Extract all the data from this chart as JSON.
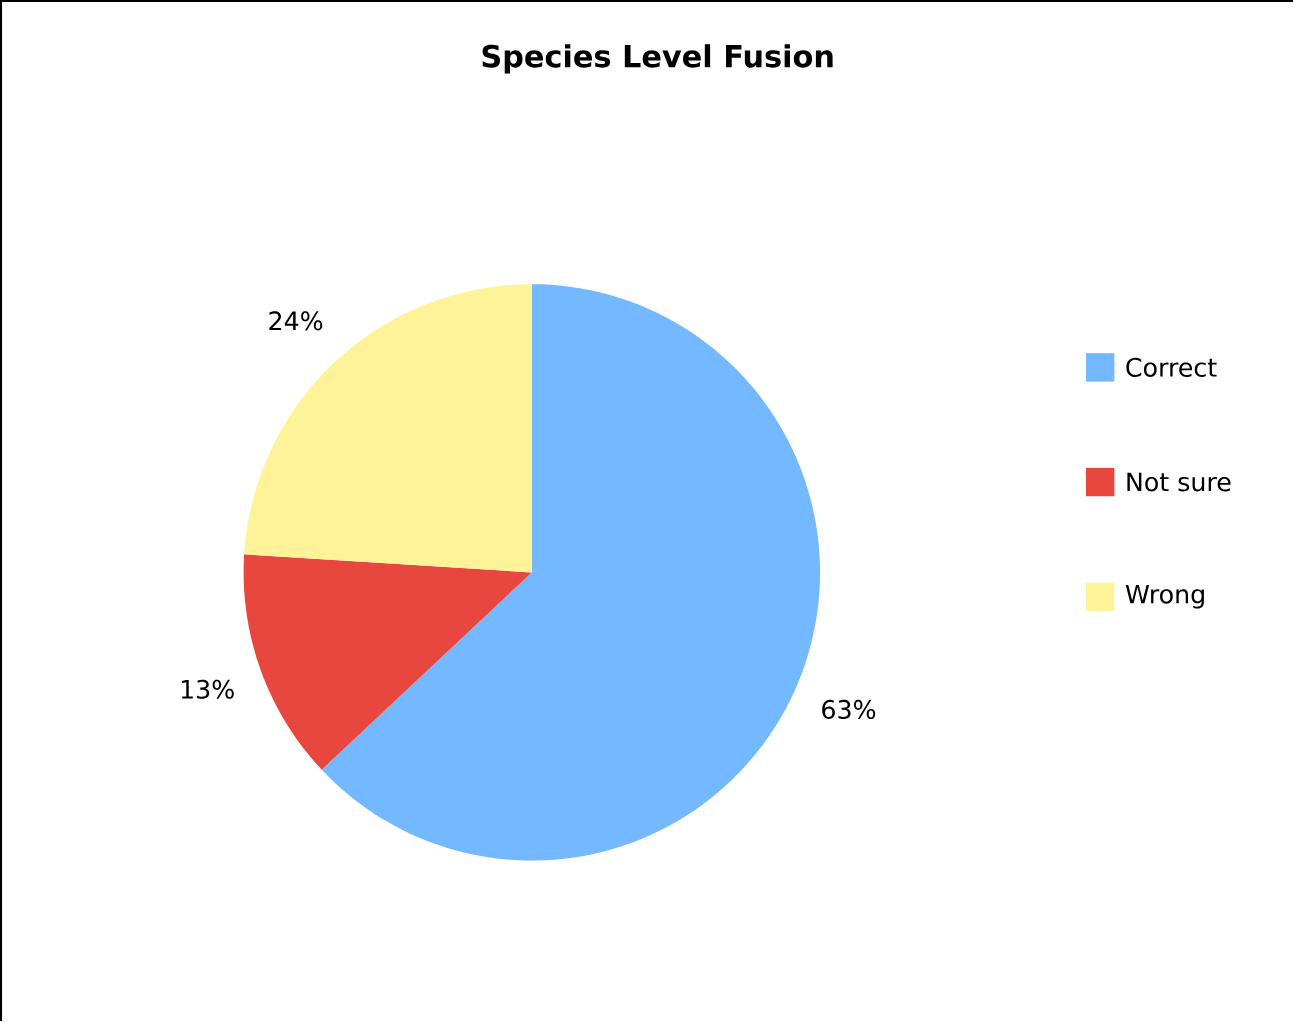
{
  "chart_data": {
    "type": "pie",
    "title": "Species Level Fusion",
    "categories": [
      "Correct",
      "Not sure",
      "Wrong"
    ],
    "values": [
      63,
      13,
      24
    ],
    "colors": [
      "#74b9ff",
      "#e8473f",
      "#fff39a"
    ],
    "value_labels": [
      "63%",
      "13%",
      "24%"
    ],
    "legend": "right"
  }
}
